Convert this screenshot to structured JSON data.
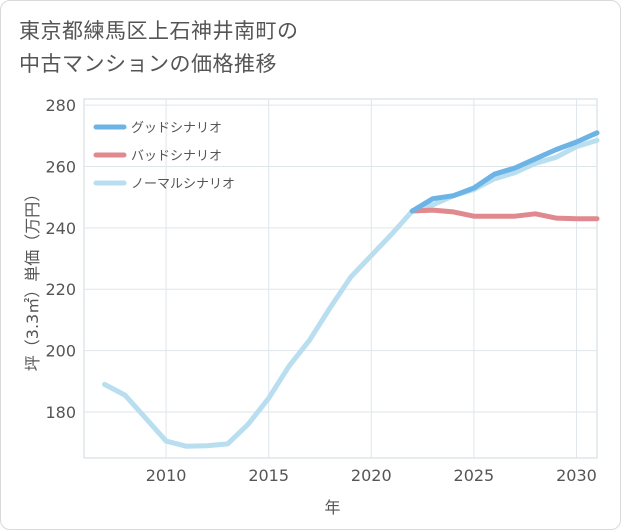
{
  "title_line1": "東京都練馬区上石神井南町の",
  "title_line2": "中古マンションの価格推移",
  "chart_data": {
    "type": "line",
    "xlabel": "年",
    "ylabel": "坪（3.3㎡）単価（万円）",
    "xlim": [
      2006,
      2031
    ],
    "ylim": [
      165,
      282
    ],
    "xticks": [
      2010,
      2015,
      2020,
      2025,
      2030
    ],
    "yticks": [
      180,
      200,
      220,
      240,
      260,
      280
    ],
    "legend_position": "top-left",
    "series": [
      {
        "name": "グッドシナリオ",
        "color": "#6cb3e6",
        "x": [
          2022,
          2023,
          2024,
          2025,
          2026,
          2027,
          2028,
          2029,
          2030,
          2031
        ],
        "y": [
          245.5,
          249.5,
          250.5,
          253.0,
          257.5,
          259.5,
          262.5,
          265.5,
          268.0,
          271.0
        ]
      },
      {
        "name": "バッドシナリオ",
        "color": "#e08a8f",
        "x": [
          2022,
          2023,
          2024,
          2025,
          2026,
          2027,
          2028,
          2029,
          2030,
          2031
        ],
        "y": [
          245.5,
          245.8,
          245.2,
          243.8,
          243.8,
          243.8,
          244.6,
          243.2,
          243.0,
          243.0
        ]
      },
      {
        "name": "ノーマルシナリオ",
        "color": "#b9def0",
        "x": [
          2007,
          2008,
          2009,
          2010,
          2011,
          2012,
          2013,
          2014,
          2015,
          2016,
          2017,
          2018,
          2019,
          2020,
          2021,
          2022,
          2023,
          2024,
          2025,
          2026,
          2027,
          2028,
          2029,
          2030,
          2031
        ],
        "y": [
          189.0,
          185.5,
          178.0,
          170.5,
          168.8,
          169.0,
          169.6,
          176.0,
          184.5,
          195.0,
          203.5,
          214.0,
          224.0,
          231.0,
          238.0,
          245.5,
          247.5,
          250.5,
          252.5,
          256.0,
          258.0,
          261.0,
          263.0,
          266.5,
          268.5
        ]
      }
    ]
  }
}
